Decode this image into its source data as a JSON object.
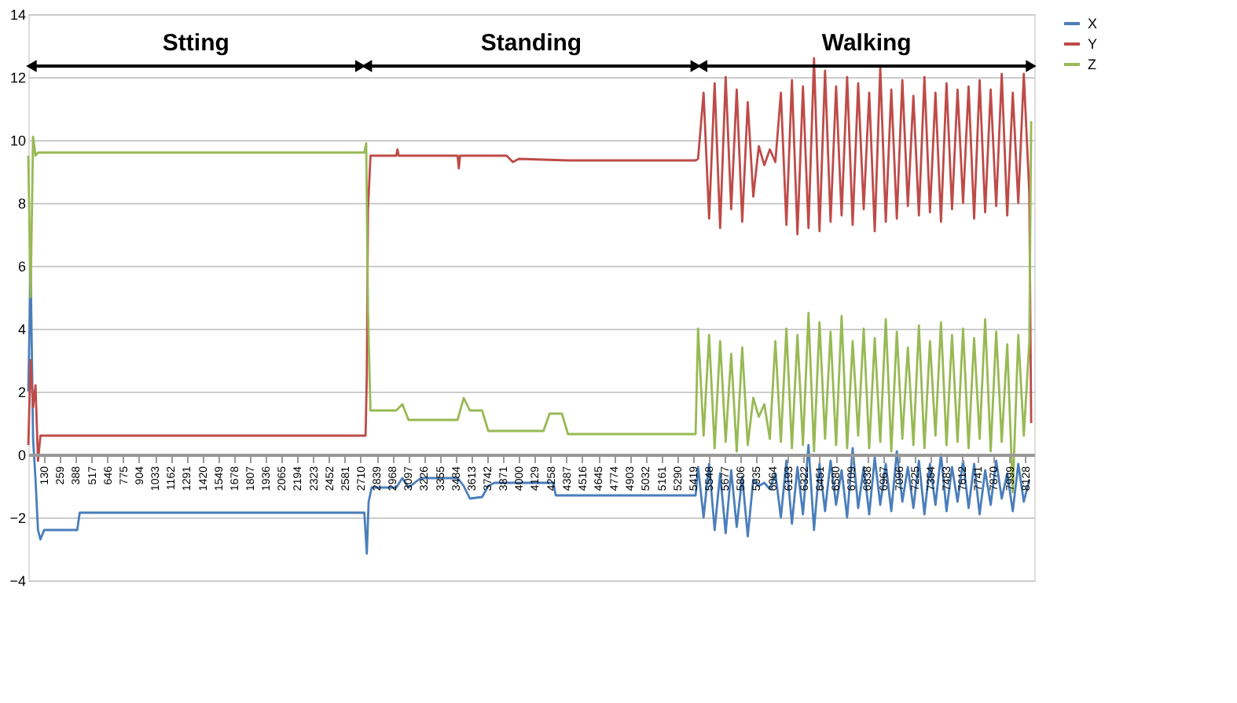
{
  "chart_data": {
    "type": "line",
    "xlim": [
      1,
      8200
    ],
    "xticks": [
      130,
      259,
      388,
      517,
      646,
      775,
      904,
      1033,
      1162,
      1291,
      1420,
      1549,
      1678,
      1807,
      1936,
      2065,
      2194,
      2323,
      2452,
      2581,
      2710,
      2839,
      2968,
      3097,
      3226,
      3355,
      3484,
      3613,
      3742,
      3871,
      4000,
      4129,
      4258,
      4387,
      4516,
      4645,
      4774,
      4903,
      5032,
      5161,
      5290,
      5419,
      5548,
      5677,
      5806,
      5935,
      6064,
      6193,
      6322,
      6451,
      6580,
      6709,
      6838,
      6967,
      7096,
      7225,
      7354,
      7483,
      7612,
      7741,
      7870,
      7999,
      8128
    ],
    "ylim": [
      -4,
      14
    ],
    "yticks": [
      -4,
      -2,
      0,
      2,
      4,
      6,
      8,
      10,
      12,
      14
    ],
    "grid": "y",
    "legend": "right",
    "annotations": [
      "Stting",
      "Standing",
      "Walking"
    ],
    "series": [
      {
        "name": "X",
        "color": "#4a7ebb",
        "x": [
          1,
          20,
          40,
          60,
          80,
          100,
          130,
          200,
          300,
          400,
          420,
          1000,
          2000,
          2740,
          2760,
          2775,
          2800,
          3000,
          3050,
          3100,
          3200,
          3500,
          3550,
          3600,
          3700,
          3750,
          3800,
          4000,
          4200,
          4280,
          4300,
          5000,
          5440,
          5460,
          5505,
          5550,
          5595,
          5640,
          5685,
          5730,
          5775,
          5820,
          5865,
          5910,
          5955,
          6000,
          6045,
          6090,
          6135,
          6180,
          6225,
          6270,
          6315,
          6360,
          6405,
          6450,
          6495,
          6540,
          6585,
          6630,
          6675,
          6720,
          6765,
          6810,
          6855,
          6900,
          6945,
          6990,
          7035,
          7080,
          7125,
          7170,
          7215,
          7260,
          7305,
          7350,
          7395,
          7440,
          7485,
          7530,
          7575,
          7620,
          7665,
          7710,
          7755,
          7800,
          7845,
          7890,
          7935,
          7980,
          8025,
          8070,
          8115,
          8160
        ],
        "values": [
          2.0,
          6.0,
          0.5,
          -0.8,
          -2.4,
          -2.7,
          -2.4,
          -2.4,
          -2.4,
          -2.4,
          -1.85,
          -1.85,
          -1.85,
          -1.85,
          -3.15,
          -1.5,
          -1.05,
          -1.05,
          -0.75,
          -1.05,
          -0.75,
          -0.75,
          -1.0,
          -1.4,
          -1.35,
          -1.0,
          -0.9,
          -0.9,
          -0.9,
          -0.9,
          -1.3,
          -1.3,
          -1.3,
          -0.4,
          -2.0,
          -0.3,
          -2.4,
          -0.6,
          -2.5,
          -0.5,
          -2.3,
          -0.7,
          -2.6,
          -0.8,
          -1.0,
          -0.9,
          -1.1,
          -0.6,
          -2.0,
          -0.2,
          -2.2,
          -0.4,
          -1.9,
          0.3,
          -2.4,
          -0.3,
          -1.8,
          -0.2,
          -1.6,
          -0.5,
          -2.0,
          0.2,
          -1.7,
          -0.4,
          -1.9,
          -0.1,
          -1.6,
          -0.3,
          -1.8,
          0.1,
          -1.5,
          -0.4,
          -1.7,
          -0.2,
          -1.9,
          -0.3,
          -1.6,
          0.0,
          -1.8,
          -0.4,
          -1.5,
          -0.2,
          -1.7,
          -0.3,
          -1.9,
          -0.5,
          -1.6,
          -0.2,
          -1.4,
          -0.6,
          -1.8,
          -0.3,
          -1.5,
          -0.8
        ]
      },
      {
        "name": "Y",
        "color": "#be4b48",
        "x": [
          1,
          20,
          40,
          60,
          80,
          100,
          130,
          1000,
          2000,
          2750,
          2760,
          2770,
          2790,
          3000,
          3010,
          3020,
          3500,
          3510,
          3520,
          3900,
          3950,
          4000,
          4400,
          5000,
          5440,
          5460,
          5505,
          5550,
          5595,
          5640,
          5685,
          5730,
          5775,
          5820,
          5865,
          5910,
          5955,
          6000,
          6045,
          6090,
          6135,
          6180,
          6225,
          6270,
          6315,
          6360,
          6405,
          6450,
          6495,
          6540,
          6585,
          6630,
          6675,
          6720,
          6765,
          6810,
          6855,
          6900,
          6945,
          6990,
          7035,
          7080,
          7125,
          7170,
          7215,
          7260,
          7305,
          7350,
          7395,
          7440,
          7485,
          7530,
          7575,
          7620,
          7665,
          7710,
          7755,
          7800,
          7845,
          7890,
          7935,
          7980,
          8025,
          8070,
          8115,
          8160,
          8175
        ],
        "values": [
          0.3,
          3.0,
          1.5,
          2.2,
          -0.2,
          0.6,
          0.6,
          0.6,
          0.6,
          0.6,
          2.5,
          7.8,
          9.5,
          9.5,
          9.7,
          9.5,
          9.5,
          9.1,
          9.5,
          9.5,
          9.3,
          9.4,
          9.35,
          9.35,
          9.35,
          9.4,
          11.5,
          7.5,
          11.8,
          7.2,
          12.0,
          7.8,
          11.6,
          7.4,
          11.2,
          8.2,
          9.8,
          9.2,
          9.7,
          9.3,
          11.5,
          7.3,
          11.9,
          7.0,
          11.7,
          7.2,
          12.6,
          7.1,
          12.2,
          7.4,
          11.7,
          7.6,
          12.0,
          7.3,
          11.8,
          7.8,
          11.5,
          7.1,
          12.3,
          7.4,
          11.6,
          7.5,
          11.9,
          7.9,
          11.4,
          7.6,
          12.0,
          7.7,
          11.5,
          7.4,
          11.8,
          7.8,
          11.6,
          8.0,
          11.7,
          7.5,
          11.9,
          7.7,
          11.6,
          7.9,
          12.1,
          7.6,
          11.5,
          8.0,
          12.1,
          8.3,
          1.0
        ]
      },
      {
        "name": "Z",
        "color": "#98b954",
        "x": [
          1,
          20,
          40,
          60,
          80,
          130,
          1000,
          2000,
          2740,
          2755,
          2770,
          2790,
          3000,
          3050,
          3100,
          3500,
          3550,
          3600,
          3700,
          3750,
          3800,
          4200,
          4250,
          4350,
          4400,
          5000,
          5440,
          5460,
          5505,
          5550,
          5595,
          5640,
          5685,
          5730,
          5775,
          5820,
          5865,
          5910,
          5955,
          6000,
          6045,
          6090,
          6135,
          6180,
          6225,
          6270,
          6315,
          6360,
          6405,
          6450,
          6495,
          6540,
          6585,
          6630,
          6675,
          6720,
          6765,
          6810,
          6855,
          6900,
          6945,
          6990,
          7035,
          7080,
          7125,
          7170,
          7215,
          7260,
          7305,
          7350,
          7395,
          7440,
          7485,
          7530,
          7575,
          7620,
          7665,
          7710,
          7755,
          7800,
          7845,
          7890,
          7935,
          7980,
          8025,
          8070,
          8115,
          8160,
          8175
        ],
        "values": [
          9.5,
          5.0,
          10.1,
          9.5,
          9.6,
          9.6,
          9.6,
          9.6,
          9.6,
          9.9,
          4.5,
          1.4,
          1.4,
          1.6,
          1.1,
          1.1,
          1.8,
          1.4,
          1.4,
          0.75,
          0.75,
          0.75,
          1.3,
          1.3,
          0.65,
          0.65,
          0.65,
          4.0,
          0.6,
          3.8,
          0.2,
          3.6,
          0.4,
          3.2,
          0.1,
          3.4,
          0.3,
          1.8,
          1.2,
          1.6,
          0.5,
          3.6,
          0.4,
          4.0,
          0.2,
          3.8,
          0.3,
          4.5,
          0.1,
          4.2,
          0.5,
          3.9,
          0.3,
          4.4,
          0.2,
          3.6,
          0.6,
          4.0,
          0.2,
          3.7,
          0.4,
          4.3,
          0.1,
          3.9,
          0.5,
          3.4,
          0.3,
          4.1,
          0.2,
          3.6,
          0.6,
          4.2,
          0.3,
          3.8,
          0.4,
          4.0,
          0.2,
          3.7,
          0.5,
          4.3,
          0.1,
          3.9,
          0.4,
          3.5,
          -1.2,
          3.8,
          0.6,
          3.6,
          10.6
        ]
      }
    ]
  }
}
